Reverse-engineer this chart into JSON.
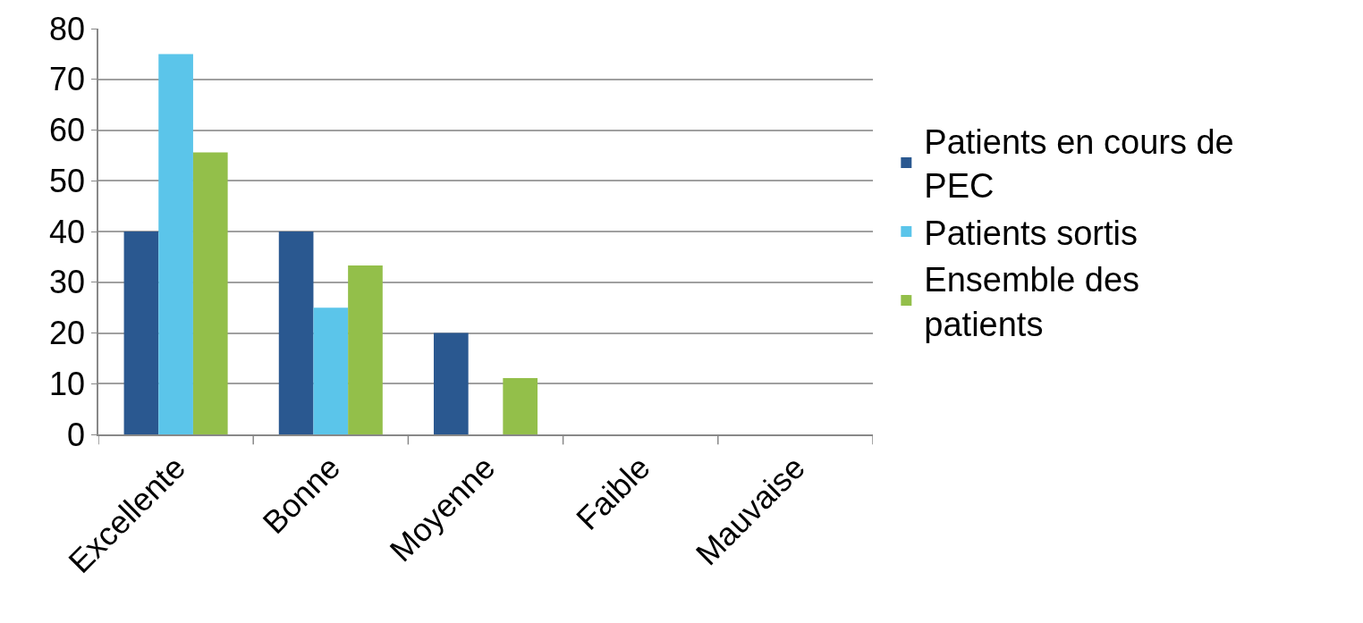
{
  "chart_data": {
    "type": "bar",
    "categories": [
      "Excellente",
      "Bonne",
      "Moyenne",
      "Faible",
      "Mauvaise"
    ],
    "series": [
      {
        "name": "Patients en cours de PEC",
        "color": "#2a5890",
        "values": [
          40,
          40,
          20,
          0,
          0
        ]
      },
      {
        "name": "Patients sortis",
        "color": "#5bc5ea",
        "values": [
          75,
          25,
          0,
          0,
          0
        ]
      },
      {
        "name": "Ensemble des patients",
        "color": "#93bf4a",
        "values": [
          55.6,
          33.3,
          11.1,
          0,
          0
        ]
      }
    ],
    "ylim": [
      0,
      80
    ],
    "yticks": [
      0,
      10,
      20,
      30,
      40,
      50,
      60,
      70,
      80
    ],
    "grid": "y",
    "legend": "right"
  }
}
